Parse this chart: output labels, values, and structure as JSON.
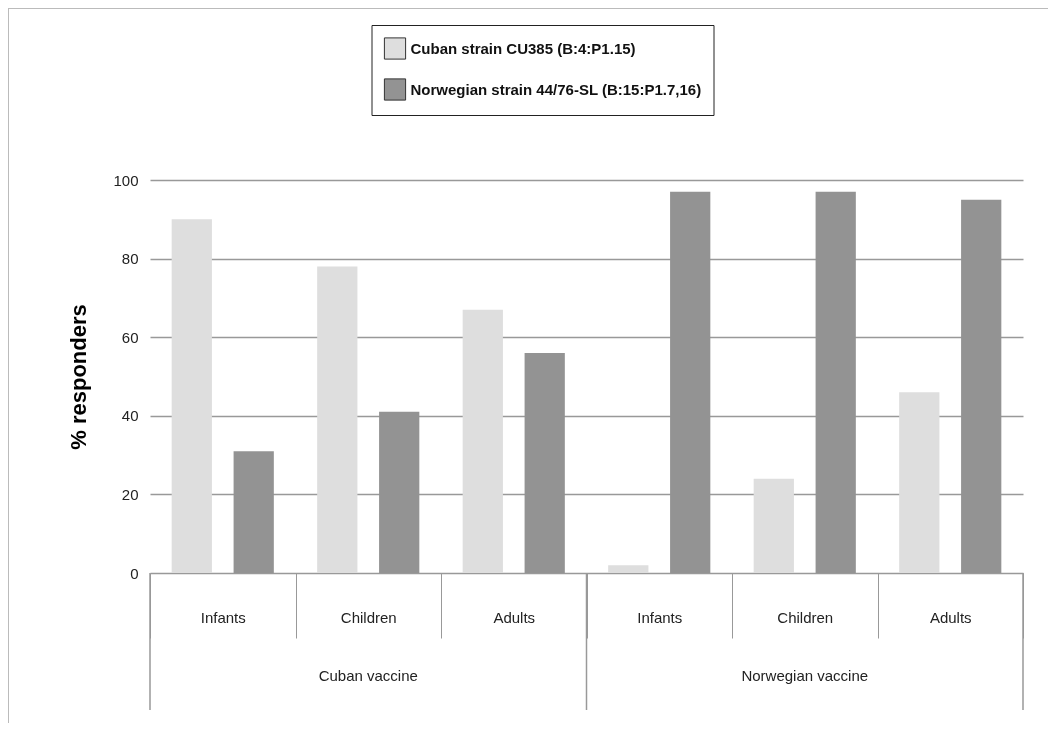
{
  "chart_data": {
    "type": "bar",
    "ylabel": "% responders",
    "categories": [
      "Infants",
      "Children",
      "Adults",
      "Infants",
      "Children",
      "Adults"
    ],
    "series": [
      {
        "name": "Cuban strain CU385 (B:4:P1.15)",
        "color": "#dedede",
        "values": [
          90,
          78,
          67,
          2,
          24,
          46
        ]
      },
      {
        "name": "Norwegian strain 44/76-SL (B:15:P1.7,16)",
        "color": "#939393",
        "values": [
          31,
          41,
          56,
          97,
          97,
          95
        ]
      }
    ],
    "ylim": [
      0,
      100
    ],
    "yticks": [
      0,
      20,
      40,
      60,
      80,
      100
    ],
    "grid": "y",
    "legend": "top",
    "annotations": [
      "Cuban vaccine",
      "Norwegian vaccine"
    ]
  }
}
